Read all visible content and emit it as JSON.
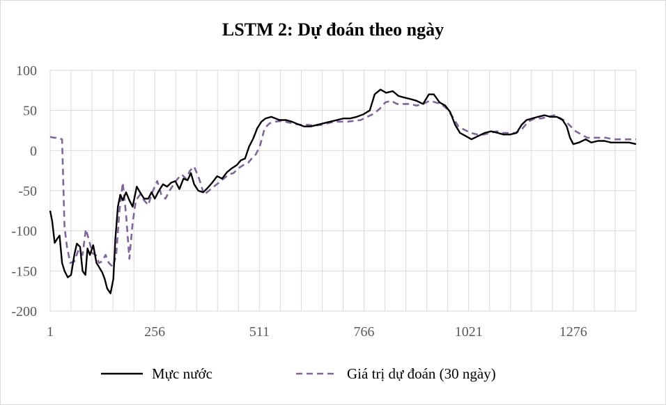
{
  "chart_data": {
    "type": "line",
    "title": "LSTM 2: Dự đoán theo ngày",
    "xlabel": "",
    "ylabel": "",
    "xlim": [
      1,
      1429
    ],
    "ylim": [
      -200,
      100
    ],
    "x_tick_values": [
      1,
      256,
      511,
      766,
      1021,
      1276
    ],
    "x_tick_labels": [
      "1",
      "256",
      "511",
      "766",
      "1021",
      "1276"
    ],
    "x_category_gridlines_every": 51,
    "y_ticks": [
      100,
      50,
      0,
      -50,
      -100,
      -150,
      -200
    ],
    "y_tick_labels": [
      "100",
      "50",
      "0",
      "-50",
      "-100",
      "-150",
      "-200"
    ],
    "grid": true,
    "legend_position": "bottom",
    "series": [
      {
        "name": "Mực nước",
        "color": "#000000",
        "style": "solid",
        "points": [
          [
            1,
            -75
          ],
          [
            6,
            -88
          ],
          [
            12,
            -115
          ],
          [
            18,
            -110
          ],
          [
            24,
            -106
          ],
          [
            30,
            -140
          ],
          [
            36,
            -150
          ],
          [
            44,
            -158
          ],
          [
            52,
            -155
          ],
          [
            60,
            -130
          ],
          [
            66,
            -116
          ],
          [
            74,
            -120
          ],
          [
            80,
            -150
          ],
          [
            87,
            -155
          ],
          [
            92,
            -122
          ],
          [
            98,
            -130
          ],
          [
            106,
            -118
          ],
          [
            114,
            -140
          ],
          [
            120,
            -145
          ],
          [
            128,
            -152
          ],
          [
            134,
            -160
          ],
          [
            140,
            -172
          ],
          [
            148,
            -178
          ],
          [
            155,
            -160
          ],
          [
            160,
            -110
          ],
          [
            166,
            -70
          ],
          [
            172,
            -55
          ],
          [
            178,
            -62
          ],
          [
            186,
            -52
          ],
          [
            194,
            -62
          ],
          [
            202,
            -70
          ],
          [
            212,
            -45
          ],
          [
            220,
            -52
          ],
          [
            230,
            -60
          ],
          [
            240,
            -60
          ],
          [
            248,
            -52
          ],
          [
            256,
            -60
          ],
          [
            266,
            -50
          ],
          [
            276,
            -42
          ],
          [
            286,
            -45
          ],
          [
            296,
            -40
          ],
          [
            306,
            -38
          ],
          [
            316,
            -48
          ],
          [
            326,
            -35
          ],
          [
            336,
            -37
          ],
          [
            344,
            -28
          ],
          [
            352,
            -42
          ],
          [
            362,
            -50
          ],
          [
            374,
            -52
          ],
          [
            384,
            -47
          ],
          [
            396,
            -40
          ],
          [
            408,
            -32
          ],
          [
            420,
            -35
          ],
          [
            432,
            -27
          ],
          [
            444,
            -22
          ],
          [
            456,
            -18
          ],
          [
            466,
            -12
          ],
          [
            476,
            -10
          ],
          [
            486,
            5
          ],
          [
            496,
            15
          ],
          [
            506,
            28
          ],
          [
            516,
            36
          ],
          [
            526,
            40
          ],
          [
            540,
            42
          ],
          [
            560,
            38
          ],
          [
            576,
            38
          ],
          [
            590,
            36
          ],
          [
            604,
            33
          ],
          [
            620,
            30
          ],
          [
            636,
            30
          ],
          [
            652,
            32
          ],
          [
            668,
            34
          ],
          [
            684,
            36
          ],
          [
            700,
            38
          ],
          [
            716,
            40
          ],
          [
            732,
            40
          ],
          [
            748,
            42
          ],
          [
            764,
            45
          ],
          [
            780,
            50
          ],
          [
            792,
            70
          ],
          [
            806,
            76
          ],
          [
            820,
            72
          ],
          [
            836,
            74
          ],
          [
            850,
            68
          ],
          [
            864,
            66
          ],
          [
            880,
            64
          ],
          [
            894,
            62
          ],
          [
            910,
            58
          ],
          [
            924,
            70
          ],
          [
            936,
            70
          ],
          [
            950,
            60
          ],
          [
            964,
            56
          ],
          [
            976,
            48
          ],
          [
            988,
            32
          ],
          [
            1000,
            22
          ],
          [
            1014,
            18
          ],
          [
            1028,
            14
          ],
          [
            1044,
            18
          ],
          [
            1060,
            22
          ],
          [
            1076,
            24
          ],
          [
            1092,
            22
          ],
          [
            1106,
            20
          ],
          [
            1122,
            20
          ],
          [
            1138,
            22
          ],
          [
            1150,
            32
          ],
          [
            1162,
            38
          ],
          [
            1176,
            40
          ],
          [
            1190,
            42
          ],
          [
            1206,
            44
          ],
          [
            1220,
            42
          ],
          [
            1236,
            42
          ],
          [
            1250,
            38
          ],
          [
            1260,
            30
          ],
          [
            1268,
            16
          ],
          [
            1276,
            8
          ],
          [
            1290,
            10
          ],
          [
            1306,
            14
          ],
          [
            1320,
            10
          ],
          [
            1336,
            12
          ],
          [
            1352,
            12
          ],
          [
            1368,
            10
          ],
          [
            1384,
            10
          ],
          [
            1398,
            10
          ],
          [
            1412,
            10
          ],
          [
            1429,
            8
          ]
        ]
      },
      {
        "name": "Giá trị dự đoán (30 ngày)",
        "color": "#8064a2",
        "style": "dashed",
        "points": [
          [
            1,
            17
          ],
          [
            10,
            16
          ],
          [
            20,
            16
          ],
          [
            30,
            14
          ],
          [
            36,
            -95
          ],
          [
            42,
            -120
          ],
          [
            50,
            -140
          ],
          [
            60,
            -138
          ],
          [
            70,
            -124
          ],
          [
            80,
            -130
          ],
          [
            88,
            -98
          ],
          [
            96,
            -112
          ],
          [
            104,
            -128
          ],
          [
            112,
            -130
          ],
          [
            120,
            -140
          ],
          [
            128,
            -138
          ],
          [
            136,
            -130
          ],
          [
            144,
            -140
          ],
          [
            154,
            -145
          ],
          [
            162,
            -130
          ],
          [
            170,
            -75
          ],
          [
            178,
            -40
          ],
          [
            186,
            -80
          ],
          [
            194,
            -135
          ],
          [
            202,
            -90
          ],
          [
            210,
            -62
          ],
          [
            220,
            -55
          ],
          [
            230,
            -62
          ],
          [
            240,
            -68
          ],
          [
            250,
            -52
          ],
          [
            262,
            -38
          ],
          [
            272,
            -55
          ],
          [
            282,
            -60
          ],
          [
            292,
            -50
          ],
          [
            302,
            -42
          ],
          [
            312,
            -35
          ],
          [
            322,
            -30
          ],
          [
            332,
            -35
          ],
          [
            342,
            -25
          ],
          [
            352,
            -20
          ],
          [
            364,
            -35
          ],
          [
            376,
            -55
          ],
          [
            388,
            -50
          ],
          [
            400,
            -45
          ],
          [
            412,
            -40
          ],
          [
            424,
            -35
          ],
          [
            436,
            -30
          ],
          [
            448,
            -28
          ],
          [
            460,
            -22
          ],
          [
            472,
            -18
          ],
          [
            484,
            -15
          ],
          [
            492,
            -10
          ],
          [
            502,
            -5
          ],
          [
            512,
            5
          ],
          [
            524,
            28
          ],
          [
            536,
            34
          ],
          [
            550,
            36
          ],
          [
            566,
            37
          ],
          [
            582,
            35
          ],
          [
            598,
            33
          ],
          [
            614,
            32
          ],
          [
            630,
            32
          ],
          [
            646,
            31
          ],
          [
            662,
            32
          ],
          [
            678,
            34
          ],
          [
            694,
            36
          ],
          [
            710,
            36
          ],
          [
            726,
            36
          ],
          [
            742,
            37
          ],
          [
            758,
            38
          ],
          [
            774,
            42
          ],
          [
            790,
            46
          ],
          [
            804,
            52
          ],
          [
            818,
            60
          ],
          [
            832,
            62
          ],
          [
            846,
            58
          ],
          [
            862,
            58
          ],
          [
            878,
            58
          ],
          [
            894,
            56
          ],
          [
            910,
            58
          ],
          [
            926,
            62
          ],
          [
            940,
            60
          ],
          [
            954,
            58
          ],
          [
            968,
            52
          ],
          [
            982,
            42
          ],
          [
            996,
            30
          ],
          [
            1010,
            26
          ],
          [
            1026,
            22
          ],
          [
            1042,
            20
          ],
          [
            1058,
            20
          ],
          [
            1074,
            22
          ],
          [
            1090,
            24
          ],
          [
            1104,
            22
          ],
          [
            1118,
            22
          ],
          [
            1134,
            22
          ],
          [
            1150,
            26
          ],
          [
            1166,
            36
          ],
          [
            1182,
            40
          ],
          [
            1198,
            40
          ],
          [
            1214,
            42
          ],
          [
            1230,
            44
          ],
          [
            1246,
            40
          ],
          [
            1258,
            36
          ],
          [
            1270,
            30
          ],
          [
            1282,
            24
          ],
          [
            1296,
            20
          ],
          [
            1310,
            16
          ],
          [
            1324,
            16
          ],
          [
            1340,
            16
          ],
          [
            1356,
            16
          ],
          [
            1372,
            14
          ],
          [
            1388,
            14
          ],
          [
            1404,
            14
          ],
          [
            1418,
            14
          ],
          [
            1429,
            14
          ]
        ]
      }
    ]
  }
}
